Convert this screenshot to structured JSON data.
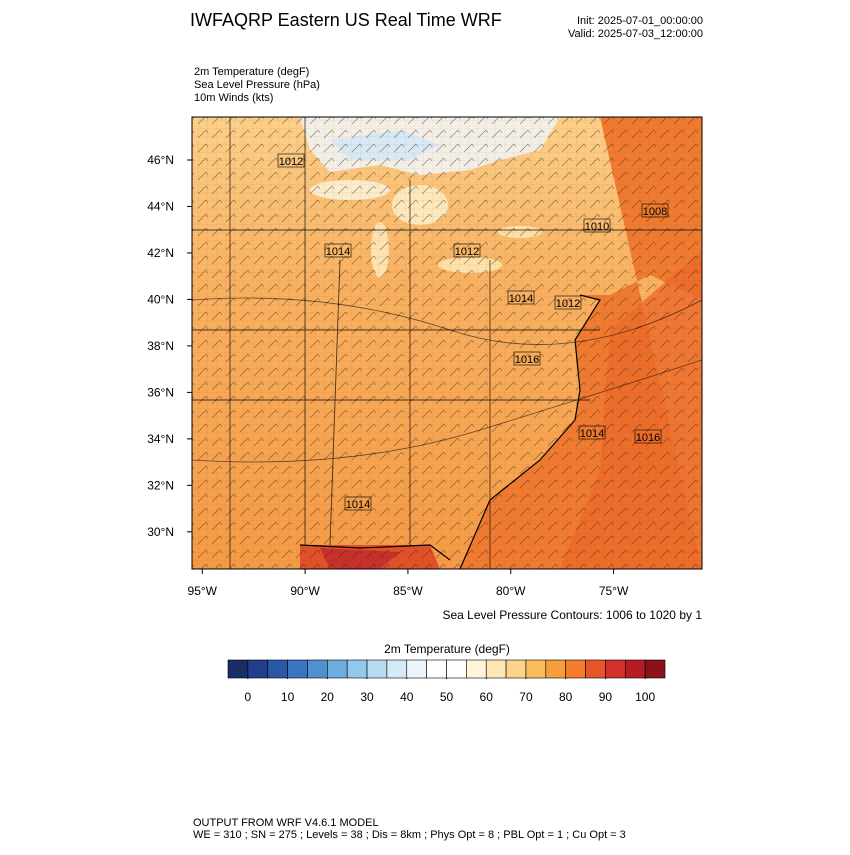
{
  "header": {
    "title": "IWFAQRP Eastern US Real Time WRF",
    "init": "Init: 2025-07-01_00:00:00",
    "valid": "Valid: 2025-07-03_12:00:00"
  },
  "fields": [
    "2m Temperature   (degF)",
    "Sea Level Pressure   (hPa)",
    "10m Winds   (kts)"
  ],
  "map": {
    "xlim": [
      -95.5,
      -70.7
    ],
    "ylim": [
      28.4,
      47.85
    ],
    "xticks": [
      {
        "value": -95,
        "label": "95°W"
      },
      {
        "value": -90,
        "label": "90°W"
      },
      {
        "value": -85,
        "label": "85°W"
      },
      {
        "value": -80,
        "label": "80°W"
      },
      {
        "value": -75,
        "label": "75°W"
      }
    ],
    "yticks": [
      {
        "value": 30,
        "label": "30°N"
      },
      {
        "value": 32,
        "label": "32°N"
      },
      {
        "value": 34,
        "label": "34°N"
      },
      {
        "value": 36,
        "label": "36°N"
      },
      {
        "value": 38,
        "label": "38°N"
      },
      {
        "value": 40,
        "label": "40°N"
      },
      {
        "value": 42,
        "label": "42°N"
      },
      {
        "value": 44,
        "label": "44°N"
      },
      {
        "value": 46,
        "label": "46°N"
      }
    ],
    "contour_labels": [
      "1012",
      "1014",
      "1012",
      "1008",
      "1010",
      "1014",
      "1012",
      "1016",
      "1014",
      "1016",
      "1014"
    ],
    "caption": "Sea Level Pressure Contours: 1006 to 1020 by 1"
  },
  "colorbar": {
    "title": "2m Temperature  (degF)",
    "range": [
      -5,
      105
    ],
    "colors": [
      "#1a2d66",
      "#213f8c",
      "#2a58a6",
      "#3b74c0",
      "#4f92d0",
      "#6caedd",
      "#92c8ea",
      "#b6dcf2",
      "#d4ebf7",
      "#ebf5fb",
      "#ffffff",
      "#ffffff",
      "#fef5dc",
      "#fde7b2",
      "#fdd389",
      "#fcbb5e",
      "#f99e3e",
      "#f47c2b",
      "#e7562a",
      "#d2302a",
      "#b61c24",
      "#8b1219"
    ],
    "ticks": [
      0,
      10,
      20,
      30,
      40,
      50,
      60,
      70,
      80,
      90,
      100
    ]
  },
  "footer": [
    "OUTPUT FROM WRF V4.6.1 MODEL",
    "WE = 310 ; SN = 275 ; Levels = 38 ; Dis = 8km ; Phys Opt = 8 ; PBL Opt = 1 ; Cu Opt = 3"
  ]
}
